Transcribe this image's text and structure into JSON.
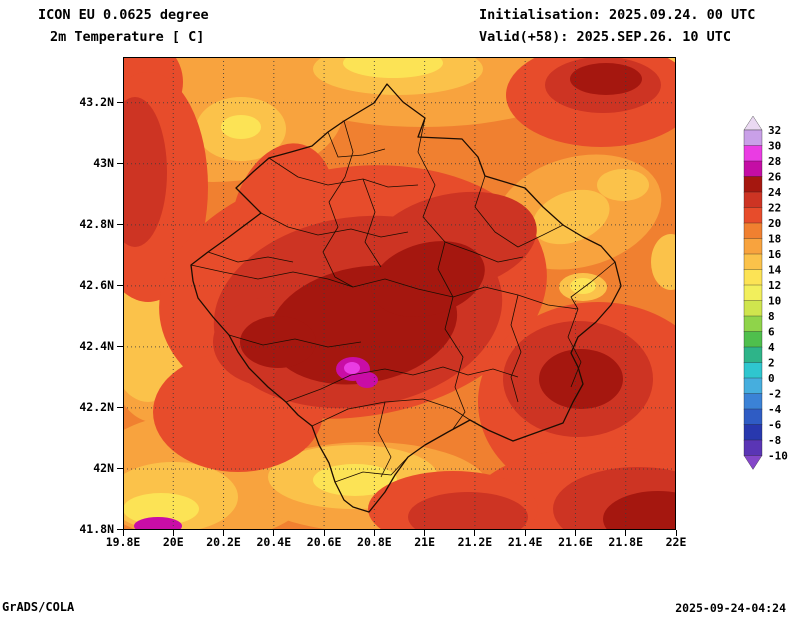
{
  "header": {
    "model": "ICON EU 0.0625 degree",
    "variable": "2m Temperature [ C]",
    "initialisation": "Initialisation: 2025.09.24. 00 UTC",
    "valid": "Valid(+58): 2025.SEP.26. 10 UTC"
  },
  "footer": {
    "credit": "GrADS/COLA",
    "timestamp": "2025-09-24-04:24"
  },
  "map": {
    "y_tick_labels": [
      "43.2N",
      "43N",
      "42.8N",
      "42.6N",
      "42.4N",
      "42.2N",
      "42N",
      "41.8N"
    ],
    "x_tick_labels": [
      "19.8E",
      "20E",
      "20.2E",
      "20.4E",
      "20.6E",
      "20.8E",
      "21E",
      "21.2E",
      "21.4E",
      "21.6E",
      "21.8E",
      "22E"
    ],
    "lon_min": 19.8,
    "lon_max": 22.0,
    "lat_min": 41.8,
    "lat_top": 43.35
  },
  "colorbar": {
    "unit": "C",
    "labels": [
      "32",
      "30",
      "28",
      "26",
      "24",
      "22",
      "20",
      "18",
      "16",
      "14",
      "12",
      "10",
      "8",
      "6",
      "4",
      "2",
      "0",
      "-2",
      "-4",
      "-6",
      "-8",
      "-10"
    ],
    "colors": [
      "#ead9f2",
      "#c9a0e8",
      "#ea3ce3",
      "#c40da5",
      "#a5170f",
      "#cd3423",
      "#e74c2b",
      "#f08030",
      "#f8a33e",
      "#fbc24a",
      "#fce355",
      "#f2ef5c",
      "#cfe54e",
      "#8fd44a",
      "#4fbf4d",
      "#2eb489",
      "#2fc6cf",
      "#46aede",
      "#3b82d6",
      "#2f5cc4",
      "#2838ae",
      "#5a35b5",
      "#8447c9"
    ]
  },
  "chart_data": {
    "type": "heatmap",
    "title": "ICON EU 0.0625 degree 2m Temperature [ C]",
    "units": "C",
    "contour_interval": 2,
    "levels": [
      -10,
      -8,
      -6,
      -4,
      -2,
      0,
      2,
      4,
      6,
      8,
      10,
      12,
      14,
      16,
      18,
      20,
      22,
      24,
      26,
      28,
      30,
      32
    ],
    "xlabel_ticks": [
      "19.8E",
      "20E",
      "20.2E",
      "20.4E",
      "20.6E",
      "20.8E",
      "21E",
      "21.2E",
      "21.4E",
      "21.6E",
      "21.8E",
      "22E"
    ],
    "ylabel_ticks": [
      "43.2N",
      "43N",
      "42.8N",
      "42.6N",
      "42.4N",
      "42.2N",
      "42N",
      "41.8N"
    ],
    "visible_value_range_c": [
      12,
      30
    ],
    "max_area": "26-30 C spot near 20.7E 42.33N",
    "dominant_range": "18-26 C over central region"
  }
}
